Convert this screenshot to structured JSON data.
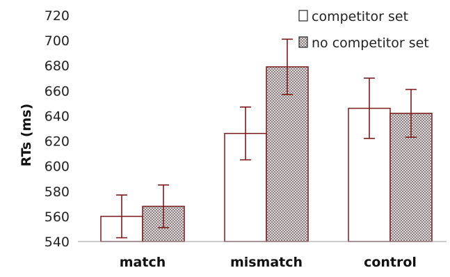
{
  "chart_data": {
    "type": "bar",
    "title": "",
    "xlabel": "",
    "ylabel": "RTs (ms)",
    "ylim": [
      540,
      720
    ],
    "yticks": [
      540,
      560,
      580,
      600,
      620,
      640,
      660,
      680,
      700,
      720
    ],
    "categories": [
      "match",
      "mismatch",
      "control"
    ],
    "series": [
      {
        "name": "competitor set",
        "values": [
          560,
          626,
          646
        ],
        "error": [
          17,
          21,
          24
        ],
        "fill": "#ffffff",
        "pattern": "none"
      },
      {
        "name": "no competitor set",
        "values": [
          568,
          679,
          642
        ],
        "error": [
          17,
          22,
          19
        ],
        "fill": "#b8aeb0",
        "pattern": "checkered"
      }
    ],
    "legend_position": "top-right",
    "grid": false,
    "colors": {
      "bar_edge": "#7a1a1a",
      "error_bar": "#7a1a1a",
      "axis": "#999999",
      "pattern_dark": "#8a7f82",
      "pattern_light": "#e3dcdd"
    }
  }
}
